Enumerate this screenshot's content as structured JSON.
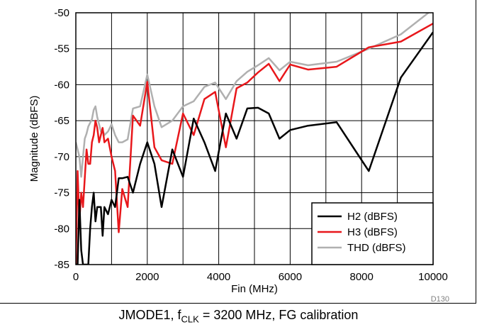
{
  "chart_data": {
    "type": "line",
    "title": "",
    "xlabel": "Fin (MHz)",
    "ylabel": "Magnitude (dBFS)",
    "xlim": [
      0,
      10000
    ],
    "ylim": [
      -85,
      -50
    ],
    "xticks": [
      "0",
      "2000",
      "4000",
      "6000",
      "8000",
      "10000"
    ],
    "yticks": [
      "-50",
      "-55",
      "-60",
      "-65",
      "-70",
      "-75",
      "-80",
      "-85"
    ],
    "grid": true,
    "legend": "bottom-right",
    "figure_code": "D130",
    "series": [
      {
        "name": "H2 (dBFS)",
        "color": "#000000",
        "x": [
          0,
          50,
          100,
          150,
          200,
          250,
          300,
          350,
          400,
          450,
          500,
          550,
          600,
          650,
          700,
          750,
          800,
          900,
          1000,
          1100,
          1200,
          1300,
          1450,
          1600,
          1800,
          2000,
          2200,
          2400,
          2700,
          3000,
          3300,
          3600,
          3900,
          4200,
          4500,
          4800,
          5100,
          5400,
          5700,
          6000,
          6500,
          7300,
          8200,
          9100,
          10000
        ],
        "y": [
          -85,
          -85,
          -76,
          -83,
          -85,
          -85,
          -85,
          -85,
          -80,
          -77,
          -75,
          -79,
          -77,
          -77,
          -77,
          -81,
          -77,
          -78,
          -76,
          -77,
          -73,
          -73,
          -72.8,
          -75,
          -71,
          -68,
          -71,
          -77,
          -69,
          -72.8,
          -64.7,
          -68,
          -72,
          -64,
          -67.5,
          -63.3,
          -63.2,
          -64,
          -67.5,
          -66.3,
          -65.7,
          -65.2,
          -72,
          -59,
          -52.7
        ]
      },
      {
        "name": "H3 (dBFS)",
        "color": "#e8171b",
        "x": [
          0,
          50,
          100,
          150,
          200,
          250,
          300,
          350,
          400,
          450,
          500,
          550,
          600,
          650,
          700,
          750,
          800,
          900,
          1000,
          1100,
          1200,
          1300,
          1450,
          1600,
          1800,
          2000,
          2200,
          2400,
          2700,
          3000,
          3300,
          3600,
          3900,
          4200,
          4500,
          4800,
          5100,
          5400,
          5700,
          6000,
          6500,
          7300,
          8200,
          9100,
          10000
        ],
        "y": [
          -85,
          -72,
          -79,
          -75,
          -77,
          -73,
          -69,
          -71,
          -71,
          -68,
          -67,
          -65,
          -66,
          -68,
          -67,
          -66,
          -68,
          -67.5,
          -70,
          -72,
          -80.5,
          -74.5,
          -77,
          -64.3,
          -65.7,
          -59.6,
          -68.7,
          -70.5,
          -71,
          -64,
          -67,
          -62,
          -61,
          -68.7,
          -60.5,
          -59.7,
          -58.3,
          -57.1,
          -59.5,
          -57.2,
          -57.9,
          -57.5,
          -54.8,
          -54,
          -51.5
        ]
      },
      {
        "name": "THD (dBFS)",
        "color": "#b0b0b0",
        "x": [
          0,
          50,
          100,
          150,
          200,
          250,
          300,
          350,
          400,
          450,
          500,
          550,
          600,
          650,
          700,
          750,
          800,
          900,
          1000,
          1100,
          1200,
          1300,
          1450,
          1600,
          1800,
          2000,
          2200,
          2400,
          2700,
          3000,
          3300,
          3600,
          3900,
          4200,
          4500,
          4800,
          5100,
          5400,
          5700,
          6000,
          6500,
          7300,
          8200,
          9100,
          10000
        ],
        "y": [
          -68,
          -69,
          -70,
          -72.8,
          -70,
          -67.5,
          -66.8,
          -65.8,
          -65.3,
          -64.8,
          -63.5,
          -63,
          -64.5,
          -65.5,
          -66.5,
          -66.3,
          -67,
          -66.5,
          -65.5,
          -67,
          -68,
          -68,
          -67.6,
          -63.3,
          -63,
          -58.6,
          -63,
          -65.9,
          -65,
          -63,
          -62.3,
          -60.3,
          -59.7,
          -62,
          -59.5,
          -58.2,
          -57.3,
          -56.3,
          -58,
          -56.8,
          -57.3,
          -56.8,
          -55,
          -53,
          -49.5
        ]
      }
    ]
  },
  "caption": {
    "text": "JMODE1, f",
    "sub": "CLK",
    "rest": " = 3200 MHz, FG calibration"
  }
}
